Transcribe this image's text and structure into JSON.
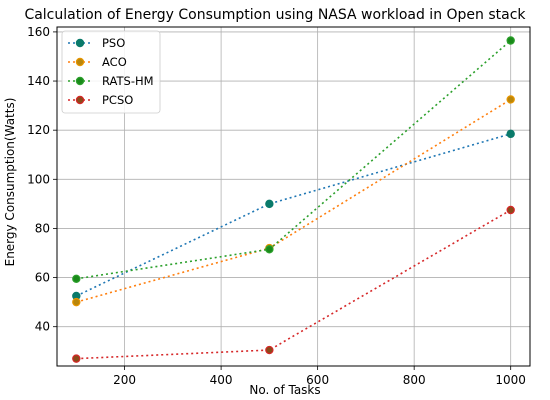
{
  "chart_data": {
    "type": "line",
    "title": "Calculation of Energy Consumption using NASA workload in Open stack",
    "xlabel": "No. of Tasks",
    "ylabel": "Energy Consumption(Watts)",
    "x": [
      100,
      500,
      1000
    ],
    "xlim": [
      60,
      1040
    ],
    "ylim": [
      24,
      162
    ],
    "xticks": [
      200,
      400,
      600,
      800,
      1000
    ],
    "yticks": [
      40,
      60,
      80,
      100,
      120,
      140,
      160
    ],
    "grid": true,
    "legend_position": "top-left",
    "series": [
      {
        "name": "PSO",
        "values": [
          52.5,
          90,
          118.5
        ],
        "line_color": "#1f77b4",
        "marker_color": "#0a7a6a",
        "marker_edge": "#0a7a6a"
      },
      {
        "name": "ACO",
        "values": [
          50,
          72,
          132.5
        ],
        "line_color": "#ff7f0e",
        "marker_color": "#b8860b",
        "marker_edge": "#e69500"
      },
      {
        "name": "RATS-HM",
        "values": [
          59.5,
          71.5,
          156.5
        ],
        "line_color": "#2ca02c",
        "marker_color": "#1a8a1a",
        "marker_edge": "#2ca02c"
      },
      {
        "name": "PCSO",
        "values": [
          27,
          30.5,
          87.5
        ],
        "line_color": "#d62728",
        "marker_color": "#8b4a1a",
        "marker_edge": "#d62728"
      }
    ]
  }
}
